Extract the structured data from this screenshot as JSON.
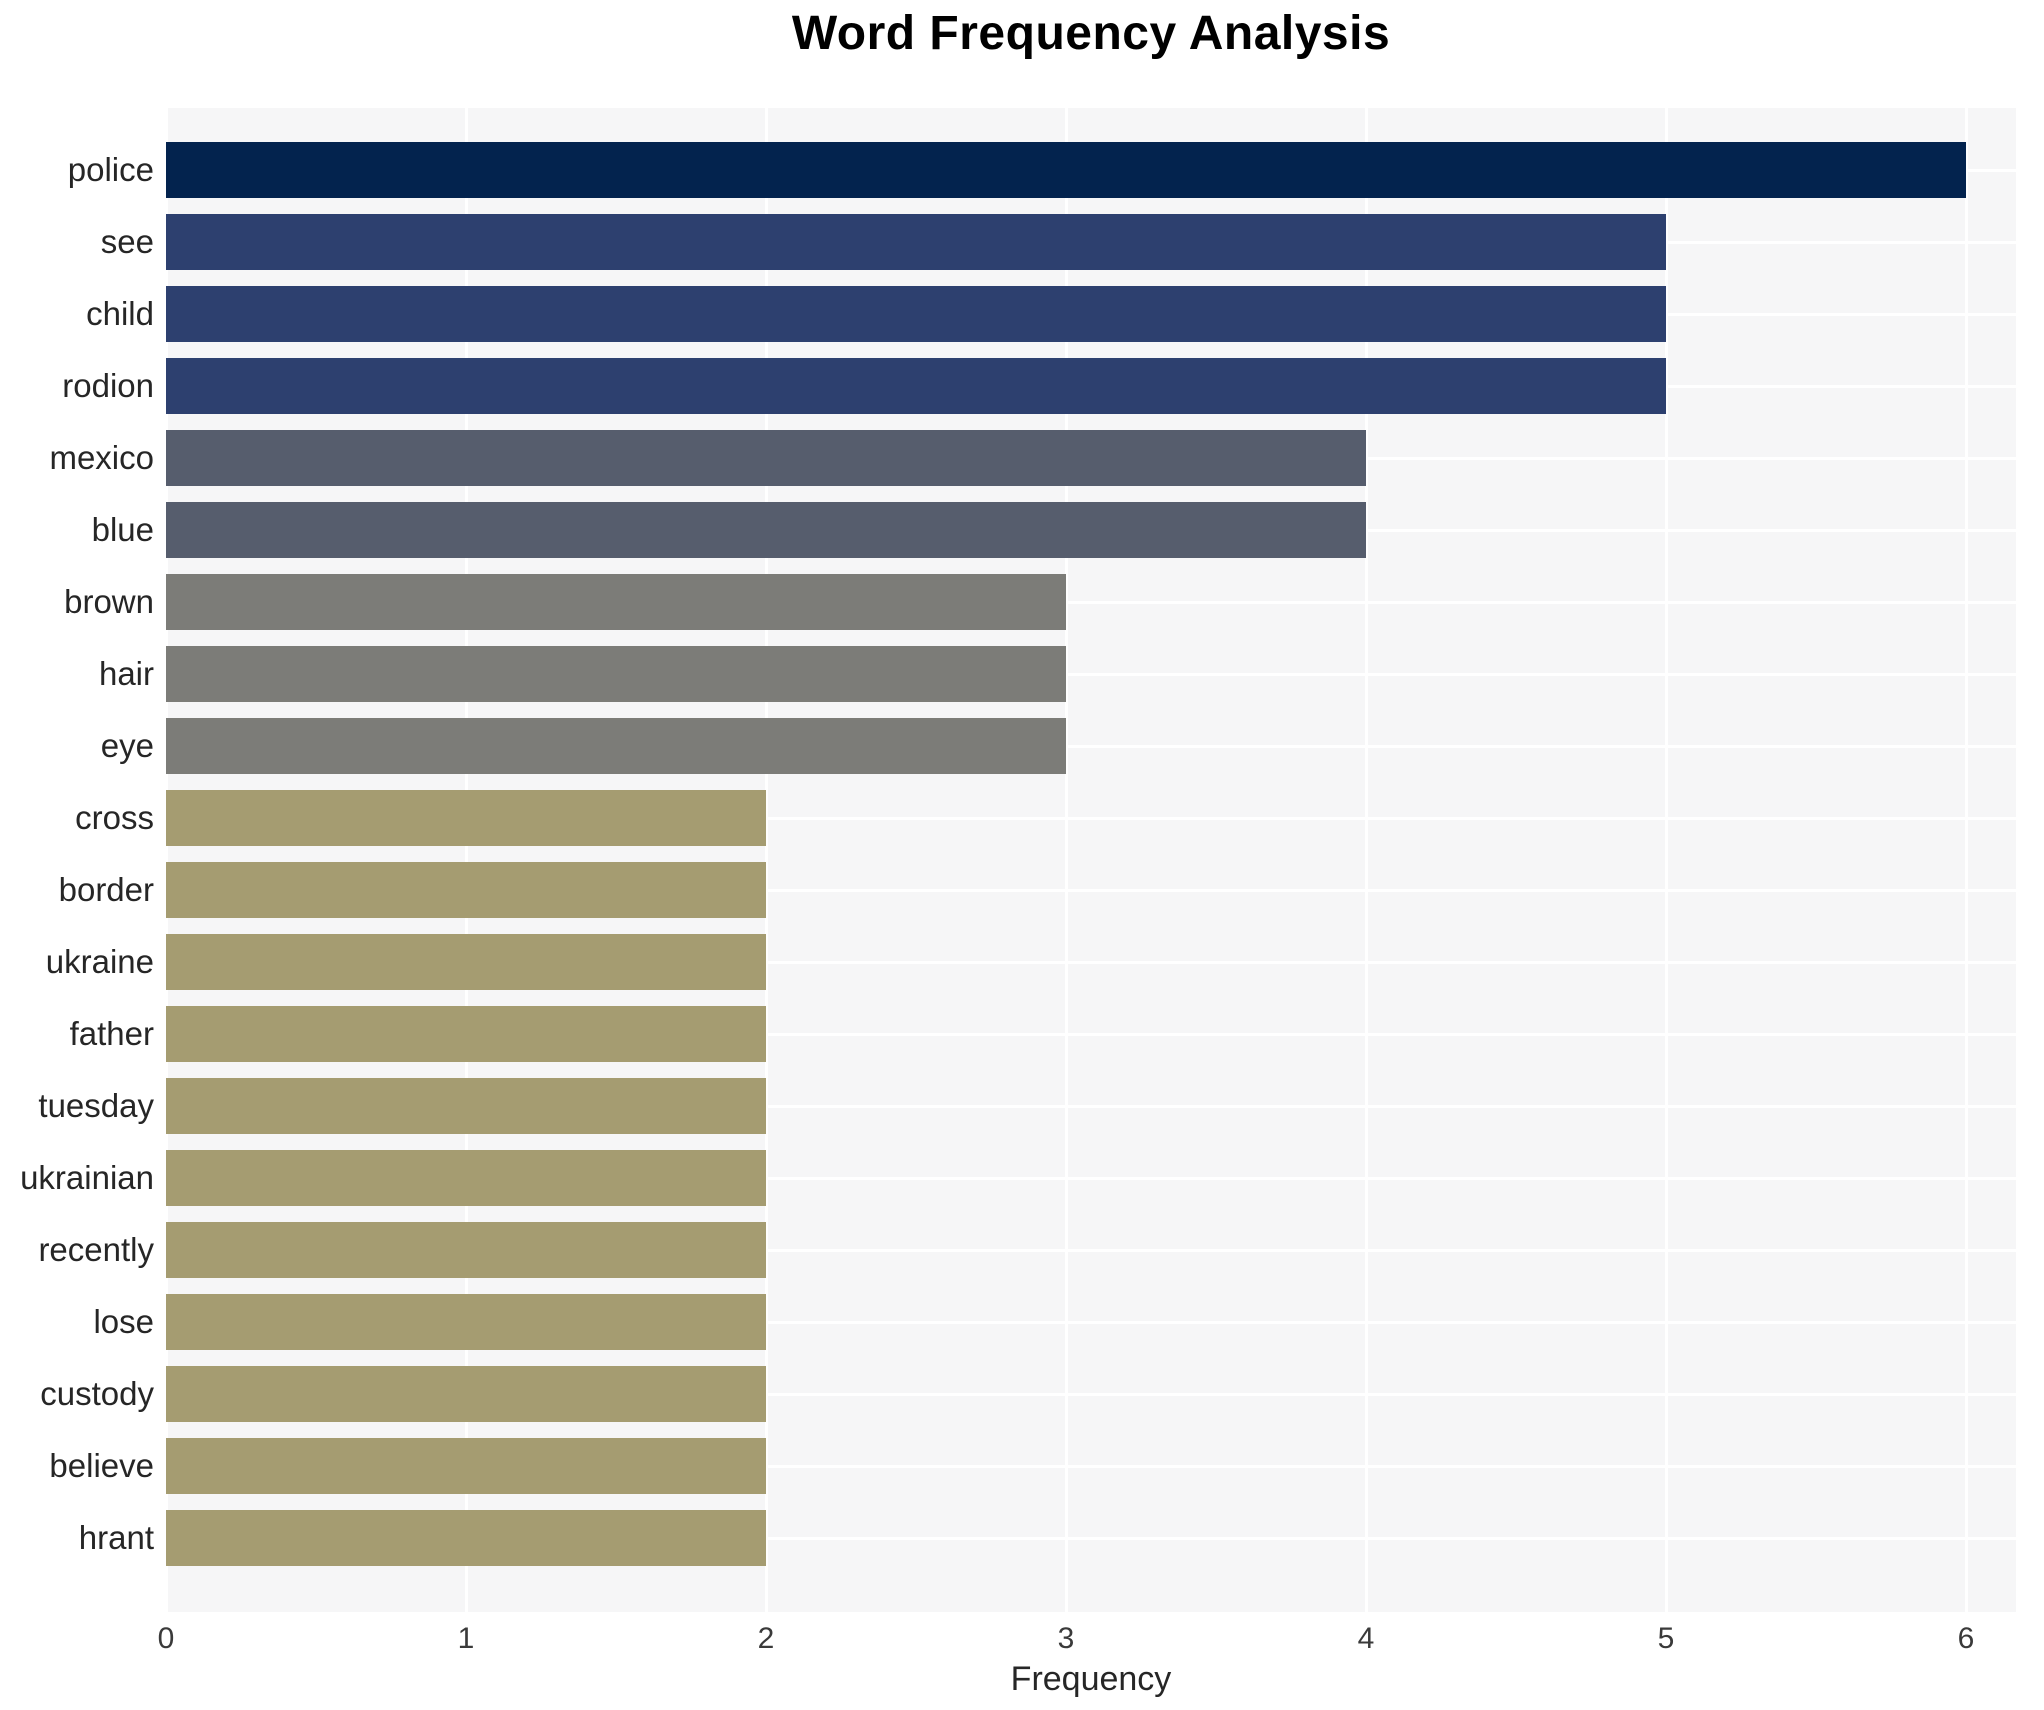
{
  "title": "Word Frequency Analysis",
  "chart_data": {
    "type": "bar",
    "orientation": "horizontal",
    "title": "Word Frequency Analysis",
    "xlabel": "Frequency",
    "ylabel": "",
    "categories": [
      "police",
      "see",
      "child",
      "rodion",
      "mexico",
      "blue",
      "brown",
      "hair",
      "eye",
      "cross",
      "border",
      "ukraine",
      "father",
      "tuesday",
      "ukrainian",
      "recently",
      "lose",
      "custody",
      "believe",
      "hrant"
    ],
    "values": [
      6,
      5,
      5,
      5,
      4,
      4,
      3,
      3,
      3,
      2,
      2,
      2,
      2,
      2,
      2,
      2,
      2,
      2,
      2,
      2
    ],
    "bar_colors": [
      "#03234e",
      "#2d406f",
      "#2d406f",
      "#2d406f",
      "#565d6d",
      "#565d6d",
      "#7c7c78",
      "#7c7c78",
      "#7c7c78",
      "#a59c71",
      "#a59c71",
      "#a59c71",
      "#a59c71",
      "#a59c71",
      "#a59c71",
      "#a59c71",
      "#a59c71",
      "#a59c71",
      "#a59c71",
      "#a59c71"
    ],
    "colors_by_value": {
      "6": "#03234e",
      "5": "#2d406f",
      "4": "#565d6d",
      "3": "#7c7c78",
      "2": "#a59c71"
    },
    "xticks": [
      "0",
      "1",
      "2",
      "3",
      "4",
      "5",
      "6"
    ],
    "xlim": [
      0,
      6.17
    ],
    "grid": true,
    "legend_position": "none",
    "panel_bg": "#f6f6f7",
    "grid_color": "#ffffff",
    "text_color": "#262626"
  }
}
